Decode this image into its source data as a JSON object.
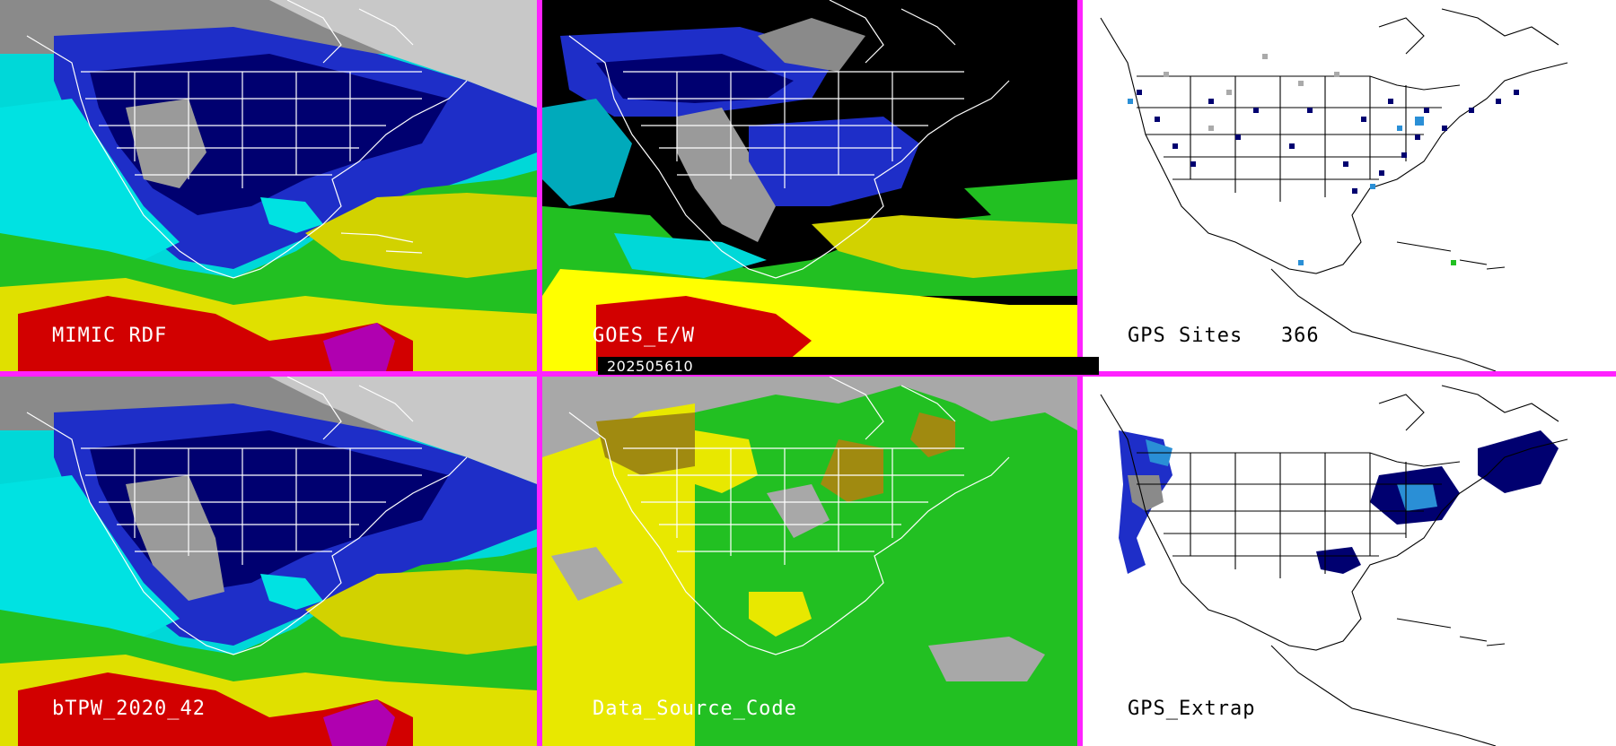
{
  "panels": [
    {
      "id": "p1",
      "label": "MIMIC RDF",
      "style": "tpw"
    },
    {
      "id": "p2",
      "label": "GOES_E/W",
      "style": "goes"
    },
    {
      "id": "p3",
      "label": "GPS Sites   366",
      "style": "gps_sites"
    },
    {
      "id": "p4",
      "label": "bTPW_2020_42",
      "style": "tpw"
    },
    {
      "id": "p5",
      "label": "Data_Source_Code",
      "style": "source"
    },
    {
      "id": "p6",
      "label": "GPS_Extrap",
      "style": "gps_extrap"
    }
  ],
  "timestamp": "202505610",
  "colors": {
    "separator": "#ff22ff",
    "ocean_black": "#000000",
    "gps_background": "#ffffff",
    "scale": [
      "#4a4a4a",
      "#8a8a8a",
      "#c8c8c8",
      "#000070",
      "#1e2ec8",
      "#2a8fd6",
      "#00e2e2",
      "#00d400",
      "#78ff00",
      "#d2d200",
      "#ffff00",
      "#d20000",
      "#ff2020",
      "#b000b0"
    ],
    "source_gray": "#a8a8a8",
    "source_yellow": "#e8e800",
    "source_green": "#22c022",
    "source_olive": "#a08a10"
  }
}
